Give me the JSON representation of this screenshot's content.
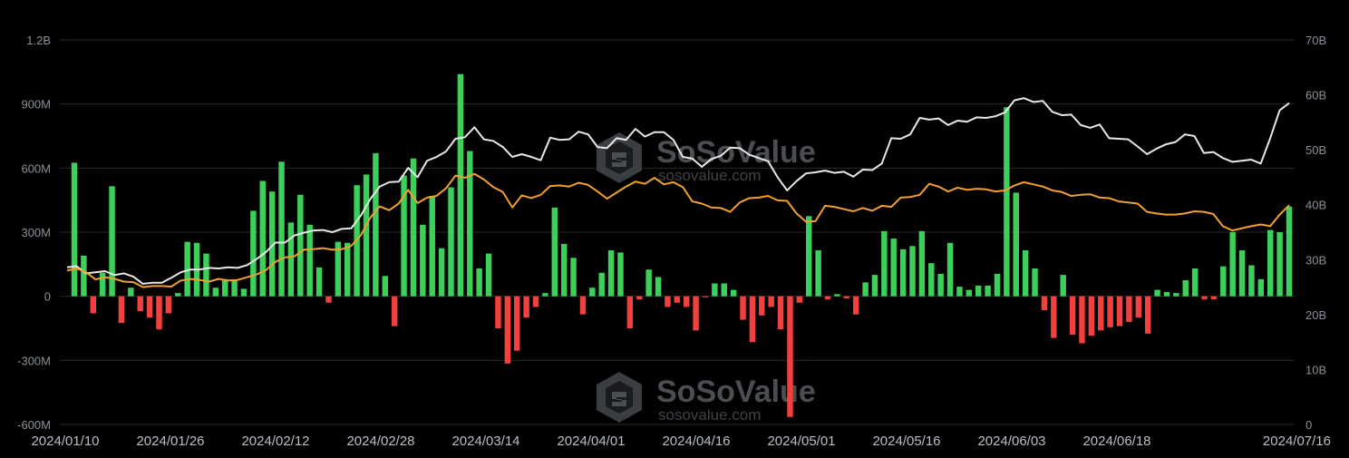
{
  "watermark": {
    "brand": "SoSoValue",
    "url": "sosovalue.com",
    "icon": "sosovalue-logo-icon"
  },
  "colors": {
    "positive_bar": "#3ccf5a",
    "negative_bar": "#f0413f",
    "line_white": "#e8e8e8",
    "line_orange": "#f0a030",
    "grid": "#2a2a2a",
    "background": "#000000"
  },
  "chart_data": {
    "type": "bar",
    "title": "",
    "xlabel": "",
    "ylabel": "",
    "ylim": [
      -600000000,
      1200000000
    ],
    "y2lim": [
      0,
      70000000000
    ],
    "left_axis_ticks": [
      "1.2B",
      "900M",
      "600M",
      "300M",
      "0",
      "-300M",
      "-600M"
    ],
    "right_axis_ticks": [
      "70B",
      "60B",
      "50B",
      "40B",
      "30B",
      "20B",
      "10B",
      "0"
    ],
    "x_tick_labels": [
      "2024/01/10",
      "2024/01/26",
      "2024/02/12",
      "2024/02/28",
      "2024/03/14",
      "2024/04/01",
      "2024/04/16",
      "2024/05/01",
      "2024/05/16",
      "2024/06/03",
      "2024/06/18",
      "2024/07/16"
    ],
    "grid": true,
    "series": [
      {
        "kind": "bar",
        "axis": "left",
        "values": [
          625,
          190,
          -80,
          110,
          515,
          -125,
          40,
          -70,
          -100,
          -155,
          -80,
          15,
          255,
          250,
          200,
          40,
          80,
          75,
          35,
          400,
          540,
          490,
          630,
          345,
          475,
          335,
          135,
          -30,
          255,
          250,
          520,
          570,
          670,
          95,
          -140,
          565,
          645,
          335,
          470,
          225,
          510,
          1040,
          680,
          130,
          200,
          -150,
          -315,
          -255,
          -100,
          -50,
          15,
          415,
          245,
          180,
          -85,
          40,
          110,
          215,
          205,
          -150,
          -15,
          125,
          90,
          -50,
          -30,
          -50,
          -160,
          -5,
          60,
          60,
          30,
          -110,
          -215,
          -90,
          -50,
          -155,
          -565,
          -30,
          375,
          215,
          -15,
          10,
          -10,
          -85,
          65,
          100,
          305,
          270,
          220,
          235,
          305,
          155,
          105,
          250,
          45,
          30,
          50,
          50,
          105,
          885,
          485,
          215,
          130,
          -65,
          -195,
          100,
          -180,
          -220,
          -185,
          -160,
          -145,
          -140,
          -120,
          -100,
          -175,
          30,
          20,
          15,
          75,
          130,
          -15,
          -15,
          140,
          300,
          215,
          145,
          80,
          310,
          300,
          420
        ]
      },
      {
        "kind": "line",
        "axis": "right",
        "values": [
          28.6,
          28.8,
          27.5,
          27.7,
          27.9,
          27.2,
          27.5,
          26.9,
          25.6,
          25.8,
          25.8,
          26.7,
          27.7,
          28.2,
          28.2,
          28.5,
          28.4,
          28.6,
          28.5,
          29.0,
          30.1,
          31.4,
          33.1,
          33.1,
          34.4,
          34.9,
          35.3,
          35.4,
          35.0,
          35.6,
          35.7,
          38.0,
          41.0,
          43.3,
          44.1,
          44.2,
          46.7,
          45.0,
          48.0,
          48.7,
          49.7,
          52.0,
          52.3,
          54.1,
          51.9,
          51.6,
          50.5,
          48.7,
          49.2,
          48.7,
          48.1,
          52.2,
          51.8,
          51.9,
          53.3,
          52.8,
          50.5,
          50.3,
          52.1,
          51.8,
          53.8,
          52.4,
          53.2,
          53.2,
          51.8,
          48.7,
          48.4,
          46.9,
          48.3,
          48.9,
          50.4,
          50.3,
          49.1,
          48.5,
          47.9,
          45.0,
          42.6,
          44.3,
          45.7,
          45.9,
          46.2,
          45.8,
          46.0,
          45.1,
          46.4,
          46.3,
          47.5,
          52.1,
          52.0,
          52.8,
          55.8,
          55.5,
          55.7,
          54.5,
          55.3,
          55.1,
          55.9,
          55.8,
          56.1,
          56.8,
          59.0,
          59.4,
          58.7,
          58.9,
          56.9,
          56.3,
          56.4,
          54.5,
          54.0,
          54.6,
          52.1,
          52.0,
          51.9,
          50.6,
          49.2,
          50.2,
          51.0,
          51.4,
          52.8,
          52.5,
          49.4,
          49.6,
          48.5,
          47.8,
          48.0,
          48.2,
          47.5,
          52.1,
          57.2,
          58.5
        ]
      },
      {
        "kind": "line",
        "axis": "right",
        "values": [
          28.0,
          28.4,
          27.7,
          26.4,
          26.8,
          26.5,
          26.0,
          25.9,
          25.0,
          25.2,
          25.2,
          25.1,
          26.2,
          26.5,
          26.3,
          26.0,
          26.5,
          26.2,
          26.3,
          26.8,
          27.3,
          28.1,
          29.6,
          30.4,
          30.6,
          31.8,
          31.9,
          32.1,
          31.8,
          31.9,
          32.5,
          34.4,
          37.6,
          39.7,
          39.0,
          40.2,
          42.7,
          40.3,
          41.3,
          41.6,
          43.0,
          45.3,
          44.9,
          45.6,
          44.6,
          43.2,
          42.3,
          39.5,
          41.7,
          41.2,
          41.8,
          43.4,
          43.5,
          43.3,
          44.0,
          43.6,
          42.4,
          41.1,
          42.2,
          43.3,
          44.2,
          43.8,
          44.9,
          43.7,
          44.1,
          43.2,
          40.6,
          40.2,
          39.5,
          39.4,
          38.7,
          40.4,
          41.2,
          41.3,
          41.6,
          40.8,
          40.7,
          38.4,
          36.9,
          37.0,
          39.8,
          39.6,
          39.2,
          38.8,
          39.4,
          38.9,
          39.8,
          39.6,
          41.3,
          41.4,
          41.8,
          43.8,
          43.3,
          42.4,
          43.1,
          42.7,
          42.9,
          42.8,
          42.4,
          42.6,
          43.5,
          44.1,
          43.7,
          43.3,
          42.6,
          42.3,
          41.6,
          41.8,
          41.9,
          41.3,
          41.2,
          40.6,
          40.4,
          40.2,
          38.7,
          38.4,
          38.2,
          38.2,
          38.4,
          38.8,
          38.7,
          38.3,
          36.1,
          35.3,
          35.7,
          36.1,
          36.4,
          36.1,
          38.2,
          39.9
        ]
      }
    ]
  }
}
